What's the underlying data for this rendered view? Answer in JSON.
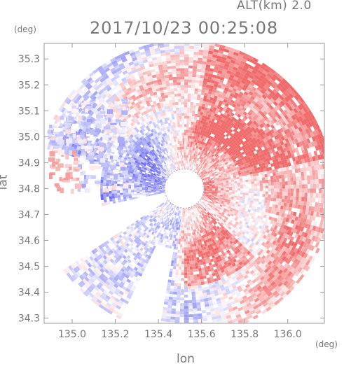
{
  "header": {
    "altitude_label": "ALT(km)  2.0",
    "timestamp": "2017/10/23 00:25:08"
  },
  "axes": {
    "y_unit": "(deg)",
    "x_unit": "(deg)",
    "y_label": "lat",
    "x_label": "lon"
  },
  "map_data": {
    "type": "heatmap",
    "x_ticks": [
      "135.0",
      "135.2",
      "135.4",
      "135.6",
      "135.8",
      "136.0"
    ],
    "x_tick_values": [
      135.0,
      135.2,
      135.4,
      135.6,
      135.8,
      136.0
    ],
    "y_ticks": [
      "35.3",
      "35.2",
      "35.1",
      "35.0",
      "34.9",
      "34.8",
      "34.7",
      "34.6",
      "34.5",
      "34.4",
      "34.3"
    ],
    "y_tick_values": [
      35.3,
      35.2,
      35.1,
      35.0,
      34.9,
      34.8,
      34.7,
      34.6,
      34.5,
      34.4,
      34.3
    ],
    "xlim": [
      134.87,
      136.17
    ],
    "ylim": [
      34.28,
      35.36
    ],
    "radar_center": [
      135.52,
      34.8
    ],
    "positive_color": "#f06a6a",
    "negative_color": "#6a6af0",
    "frame_color": "#999999"
  }
}
